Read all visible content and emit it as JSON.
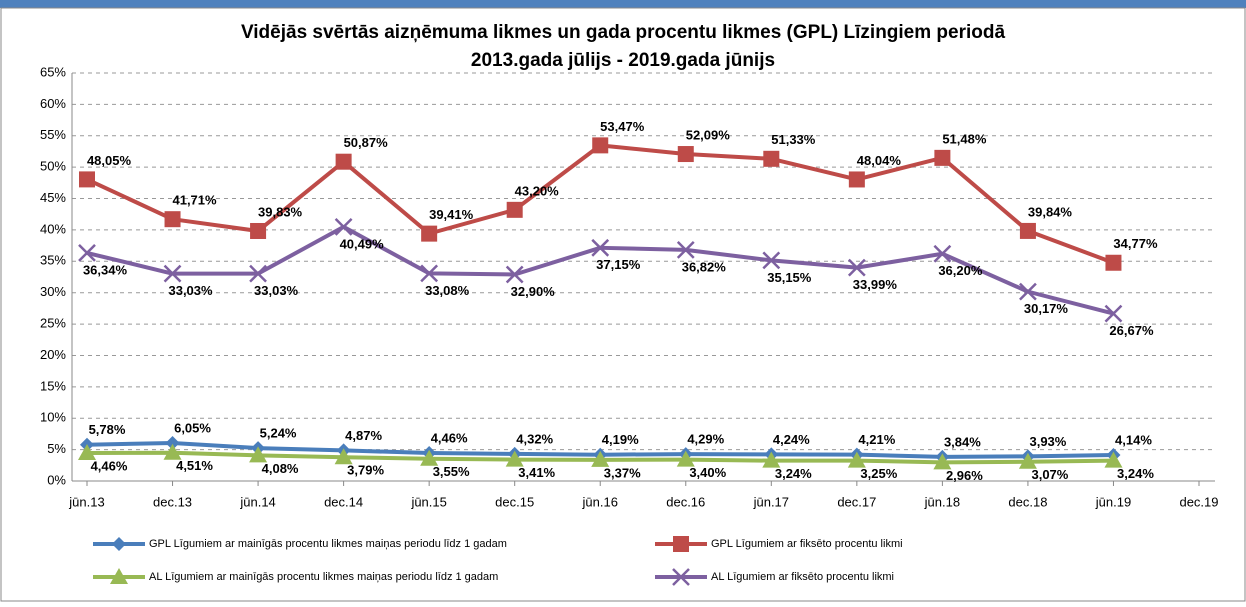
{
  "chart_data": {
    "type": "line",
    "title": "Vidējās svērtās aizņēmuma likmes un gada procentu likmes (GPL) Līzingiem periodā",
    "subtitle": "2013.gada jūlijs - 2019.gada jūnijs",
    "categories": [
      "jūn.13",
      "dec.13",
      "jūn.14",
      "dec.14",
      "jūn.15",
      "dec.15",
      "jūn.16",
      "dec.16",
      "jūn.17",
      "dec.17",
      "jūn.18",
      "dec.18",
      "jūn.19",
      "dec.19"
    ],
    "ylim": [
      0,
      65
    ],
    "yticks": [
      {
        "value": 0,
        "label": "0%"
      },
      {
        "value": 5,
        "label": "5%"
      },
      {
        "value": 10,
        "label": "10%"
      },
      {
        "value": 15,
        "label": "15%"
      },
      {
        "value": 20,
        "label": "20%"
      },
      {
        "value": 25,
        "label": "25%"
      },
      {
        "value": 30,
        "label": "30%"
      },
      {
        "value": 35,
        "label": "35%"
      },
      {
        "value": 40,
        "label": "40%"
      },
      {
        "value": 45,
        "label": "45%"
      },
      {
        "value": 50,
        "label": "50%"
      },
      {
        "value": 55,
        "label": "55%"
      },
      {
        "value": 60,
        "label": "60%"
      },
      {
        "value": 65,
        "label": "65%"
      }
    ],
    "grid": true,
    "legend": "bottom",
    "series": [
      {
        "name": "GPL Līgumiem ar mainīgās procentu likmes maiņas periodu līdz 1 gadam",
        "color": "#4a7ebb",
        "marker": "diamond",
        "values": [
          5.78,
          6.05,
          5.24,
          4.87,
          4.46,
          4.32,
          4.19,
          4.29,
          4.24,
          4.21,
          3.84,
          3.93,
          4.14,
          null
        ],
        "value_labels": [
          "5,78%",
          "6,05%",
          "5,24%",
          "4,87%",
          "4,46%",
          "4,32%",
          "4,19%",
          "4,29%",
          "4,24%",
          "4,21%",
          "3,84%",
          "3,93%",
          "4,14%",
          null
        ]
      },
      {
        "name": "GPL Līgumiem ar fiksēto procentu likmi",
        "color": "#be4b48",
        "marker": "square",
        "values": [
          48.05,
          41.71,
          39.83,
          50.87,
          39.41,
          43.2,
          53.47,
          52.09,
          51.33,
          48.04,
          51.48,
          39.84,
          34.77,
          null
        ],
        "value_labels": [
          "48,05%",
          "41,71%",
          "39,83%",
          "50,87%",
          "39,41%",
          "43,20%",
          "53,47%",
          "52,09%",
          "51,33%",
          "48,04%",
          "51,48%",
          "39,84%",
          "34,77%",
          null
        ]
      },
      {
        "name": "AL Līgumiem ar mainīgās procentu likmes maiņas periodu līdz 1 gadam",
        "color": "#98b954",
        "marker": "triangle",
        "values": [
          4.46,
          4.51,
          4.08,
          3.79,
          3.55,
          3.41,
          3.37,
          3.4,
          3.24,
          3.25,
          2.96,
          3.07,
          3.24,
          null
        ],
        "value_labels": [
          "4,46%",
          "4,51%",
          "4,08%",
          "3,79%",
          "3,55%",
          "3,41%",
          "3,37%",
          "3,40%",
          "3,24%",
          "3,25%",
          "2,96%",
          "3,07%",
          "3,24%",
          null
        ]
      },
      {
        "name": "AL Līgumiem ar fiksēto procentu likmi",
        "color": "#7d60a0",
        "marker": "x",
        "values": [
          36.34,
          33.03,
          33.03,
          40.49,
          33.08,
          32.9,
          37.15,
          36.82,
          35.15,
          33.99,
          36.2,
          30.17,
          26.67,
          null
        ],
        "value_labels": [
          "36,34%",
          "33,03%",
          "33,03%",
          "40,49%",
          "33,08%",
          "32,90%",
          "37,15%",
          "36,82%",
          "35,15%",
          "33,99%",
          "36,20%",
          "30,17%",
          "26,67%",
          null
        ]
      }
    ]
  }
}
